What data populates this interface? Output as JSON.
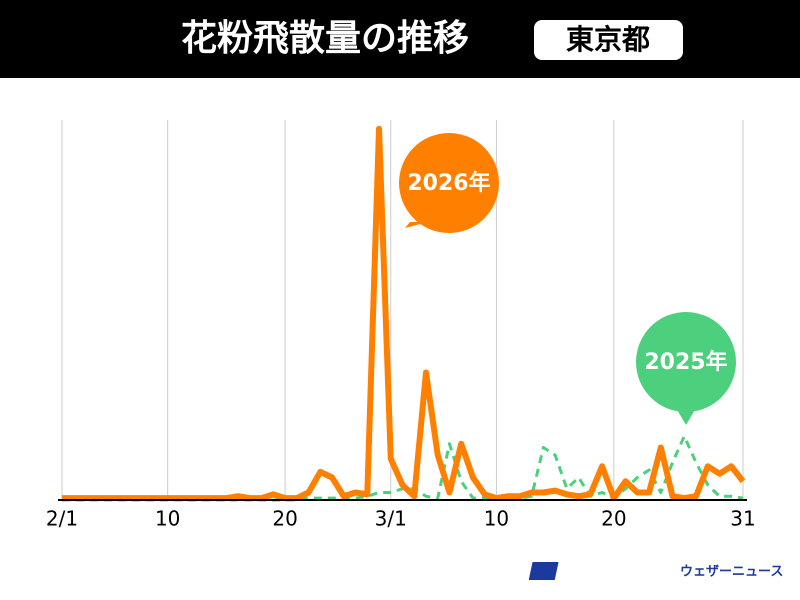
{
  "header": {
    "title": "花粉飛散量の推移",
    "region": "東京都"
  },
  "logo": "ウェザーニュース",
  "chart_data": {
    "type": "line",
    "categories": [
      "2/1",
      null,
      null,
      null,
      null,
      null,
      null,
      null,
      null,
      "10",
      null,
      null,
      null,
      null,
      null,
      null,
      null,
      null,
      null,
      "20",
      null,
      null,
      null,
      null,
      null,
      null,
      null,
      null,
      "3/1",
      null,
      null,
      null,
      null,
      null,
      null,
      null,
      null,
      "10",
      null,
      null,
      null,
      null,
      null,
      null,
      null,
      null,
      null,
      "20",
      null,
      null,
      null,
      null,
      null,
      null,
      null,
      null,
      null,
      null,
      "31"
    ],
    "ylim": [
      0,
      100
    ],
    "grid": true,
    "series": [
      {
        "name": "2026年",
        "color": "#ff8000",
        "dashed": false,
        "values": [
          0.5,
          0.5,
          0.5,
          0.5,
          0.5,
          0.5,
          0.5,
          0.5,
          0.5,
          0.5,
          0.5,
          0.5,
          0.5,
          0.5,
          0.5,
          1,
          0.5,
          0.5,
          1.5,
          0.5,
          0.5,
          2,
          7.5,
          6,
          1,
          2,
          1.5,
          99,
          11,
          4,
          1,
          34,
          12,
          2,
          15,
          6,
          1.5,
          0.5,
          1,
          1,
          2,
          2,
          2.5,
          1.5,
          1,
          1.5,
          9,
          0.5,
          5,
          2,
          2,
          14,
          1,
          0.5,
          1,
          9,
          7,
          9,
          5
        ]
      },
      {
        "name": "2025年",
        "color": "#4cd07d",
        "dashed": true,
        "values": [
          0,
          0,
          0,
          0,
          0,
          0,
          0,
          0,
          0,
          0,
          0,
          0,
          0,
          0,
          0,
          0,
          0,
          0,
          0,
          0,
          0,
          0.5,
          0.5,
          0.5,
          0.5,
          0.5,
          1,
          2,
          2,
          3,
          3,
          1,
          0.5,
          15,
          5,
          0.5,
          0.5,
          0.5,
          0.5,
          0.5,
          1,
          14,
          12,
          3,
          6,
          1,
          2,
          0.5,
          3,
          6,
          8,
          2,
          10,
          17,
          10,
          4,
          1,
          1,
          0.5
        ]
      }
    ]
  }
}
